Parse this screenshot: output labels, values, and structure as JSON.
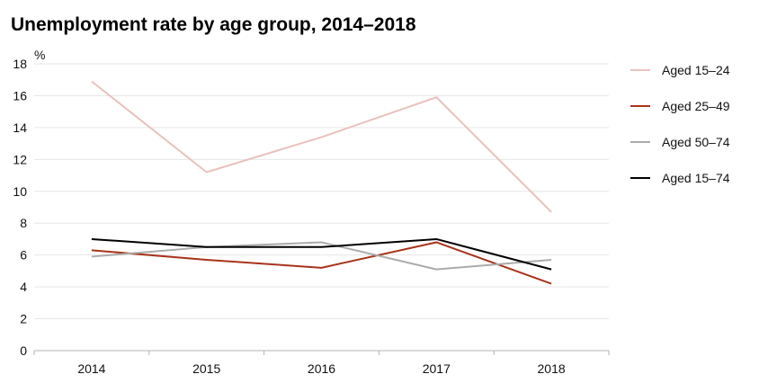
{
  "chart_data": {
    "type": "line",
    "title": "Unemployment rate by age group, 2014–2018",
    "ylabel": "%",
    "xlabel": "",
    "categories": [
      "2014",
      "2015",
      "2016",
      "2017",
      "2018"
    ],
    "ylim": [
      0,
      18
    ],
    "yticks": [
      0,
      2,
      4,
      6,
      8,
      10,
      12,
      14,
      16,
      18
    ],
    "grid": true,
    "legend_position": "right",
    "series": [
      {
        "name": "Aged 15–24",
        "color": "#e8c1bc",
        "values": [
          16.9,
          11.2,
          13.4,
          15.9,
          8.7
        ]
      },
      {
        "name": "Aged 25–49",
        "color": "#a8331c",
        "values": [
          6.3,
          5.7,
          5.2,
          6.8,
          4.2
        ]
      },
      {
        "name": "Aged 50–74",
        "color": "#ababab",
        "values": [
          5.9,
          6.5,
          6.8,
          5.1,
          5.7
        ]
      },
      {
        "name": "Aged 15–74",
        "color": "#000000",
        "values": [
          7.0,
          6.5,
          6.5,
          7.0,
          5.1
        ]
      }
    ]
  }
}
